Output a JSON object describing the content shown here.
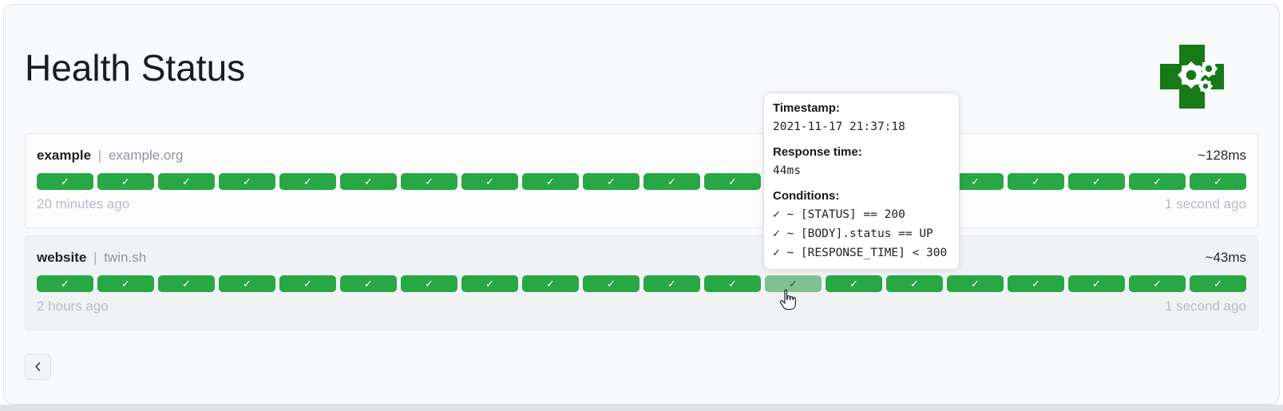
{
  "page": {
    "title": "Health Status"
  },
  "icons": {
    "check": "✓",
    "back_chevron": "‹",
    "logo": "green-medical-cross-with-gears"
  },
  "colors": {
    "badge_success": "#28a745",
    "badge_hover": "#80c28f",
    "logo_green": "#167a16"
  },
  "services": [
    {
      "name": "example",
      "separator": "|",
      "domain": "example.org",
      "avg_response": "~128ms",
      "oldest": "20 minutes ago",
      "newest": "1 second ago",
      "results": 20,
      "statuses": "all-success",
      "hover_index": -1
    },
    {
      "name": "website",
      "separator": "|",
      "domain": "twin.sh",
      "avg_response": "~43ms",
      "oldest": "2 hours ago",
      "newest": "1 second ago",
      "results": 20,
      "statuses": "all-success",
      "hover_index": 12
    }
  ],
  "tooltip": {
    "timestamp_label": "Timestamp:",
    "timestamp": "2021-11-17 21:37:18",
    "response_time_label": "Response time:",
    "response_time": "44ms",
    "conditions_label": "Conditions:",
    "conditions": [
      "✓ ~ [STATUS] == 200",
      "✓ ~ [BODY].status == UP",
      "✓ ~ [RESPONSE_TIME] < 300"
    ]
  },
  "pagination": {
    "previous": "‹"
  }
}
